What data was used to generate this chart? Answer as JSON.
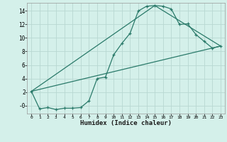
{
  "xlabel": "Humidex (Indice chaleur)",
  "bg_color": "#d4f0ea",
  "grid_color": "#b8d8d2",
  "line_color": "#2a7a6a",
  "xlim": [
    -0.5,
    23.5
  ],
  "ylim": [
    -1.2,
    15.2
  ],
  "yticks": [
    0,
    2,
    4,
    6,
    8,
    10,
    12,
    14
  ],
  "xticks": [
    0,
    1,
    2,
    3,
    4,
    5,
    6,
    7,
    8,
    9,
    10,
    11,
    12,
    13,
    14,
    15,
    16,
    17,
    18,
    19,
    20,
    21,
    22,
    23
  ],
  "curve1_x": [
    0,
    1,
    2,
    3,
    4,
    5,
    6,
    7,
    8,
    9,
    10,
    11,
    12,
    13,
    14,
    15,
    16,
    17,
    18,
    19,
    20,
    21,
    22,
    23
  ],
  "curve1_y": [
    2.1,
    -0.5,
    -0.3,
    -0.6,
    -0.4,
    -0.4,
    -0.3,
    0.7,
    4.0,
    4.2,
    7.5,
    9.2,
    10.7,
    14.0,
    14.7,
    14.8,
    14.7,
    14.3,
    12.0,
    12.1,
    10.5,
    9.5,
    8.5,
    8.8
  ],
  "curve2_x": [
    0,
    23
  ],
  "curve2_y": [
    2.1,
    8.8
  ],
  "curve3_x": [
    0,
    15,
    23
  ],
  "curve3_y": [
    2.1,
    14.8,
    8.8
  ]
}
